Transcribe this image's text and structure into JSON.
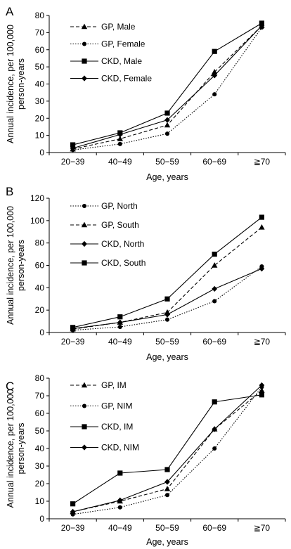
{
  "chart_data": [
    {
      "type": "line",
      "panel_label": "A",
      "categories": [
        "20−39",
        "40−49",
        "50−59",
        "60−69",
        "≧70"
      ],
      "xlabel": "Age, years",
      "ylabel": [
        "Annual incidence, per 100,000",
        "person-years"
      ],
      "ylim": [
        0,
        80
      ],
      "yticks": [
        0,
        10,
        20,
        30,
        40,
        50,
        60,
        70,
        80
      ],
      "grid": false,
      "legend_position": "top-left",
      "series": [
        {
          "name": "GP, Male",
          "values": [
            2,
            8,
            16,
            47,
            74
          ],
          "style": "dashed",
          "marker": "triangle"
        },
        {
          "name": "GP, Female",
          "values": [
            1.5,
            5,
            11,
            34,
            73
          ],
          "style": "dotted",
          "marker": "circle"
        },
        {
          "name": "CKD, Male",
          "values": [
            4.5,
            11.5,
            23,
            59,
            75.5
          ],
          "style": "solid",
          "marker": "square"
        },
        {
          "name": "CKD, Female",
          "values": [
            2.5,
            10.5,
            19,
            45,
            74
          ],
          "style": "solid",
          "marker": "diamond"
        }
      ]
    },
    {
      "type": "line",
      "panel_label": "B",
      "categories": [
        "20−39",
        "40−49",
        "50−59",
        "60−69",
        "≧70"
      ],
      "xlabel": "Age, years",
      "ylabel": [
        "Annual incidence, per 100,000",
        "person-years"
      ],
      "ylim": [
        0,
        120
      ],
      "yticks": [
        0,
        20,
        40,
        60,
        80,
        100,
        120
      ],
      "grid": false,
      "legend_position": "top-left",
      "series": [
        {
          "name": "GP, North",
          "values": [
            2,
            5,
            11.5,
            28,
            59
          ],
          "style": "dotted",
          "marker": "circle"
        },
        {
          "name": "GP, South",
          "values": [
            3,
            9,
            18,
            60,
            94
          ],
          "style": "dashed",
          "marker": "triangle"
        },
        {
          "name": "CKD, North",
          "values": [
            3.5,
            9,
            16,
            39,
            57
          ],
          "style": "solid",
          "marker": "diamond"
        },
        {
          "name": "CKD, South",
          "values": [
            4.5,
            14,
            30,
            70,
            103
          ],
          "style": "solid",
          "marker": "square"
        }
      ]
    },
    {
      "type": "line",
      "panel_label": "C",
      "categories": [
        "20−39",
        "40−49",
        "50−59",
        "60−69",
        "≧70"
      ],
      "xlabel": "Age, years",
      "ylabel": [
        "Annual incidence, per 100,000",
        "person-years"
      ],
      "ylim": [
        0,
        80
      ],
      "yticks": [
        0,
        10,
        20,
        30,
        40,
        50,
        60,
        70,
        80
      ],
      "grid": false,
      "legend_position": "top-left",
      "series": [
        {
          "name": "GP, IM",
          "values": [
            4,
            10,
            17,
            51,
            73
          ],
          "style": "dashed",
          "marker": "triangle"
        },
        {
          "name": "GP, NIM",
          "values": [
            2.5,
            6.5,
            13.5,
            40,
            75
          ],
          "style": "dotted",
          "marker": "circle"
        },
        {
          "name": "CKD, IM",
          "values": [
            8.5,
            26,
            28,
            66.5,
            70.5
          ],
          "style": "solid",
          "marker": "square"
        },
        {
          "name": "CKD, NIM",
          "values": [
            4,
            10.5,
            21,
            51,
            76
          ],
          "style": "solid",
          "marker": "diamond"
        }
      ]
    }
  ]
}
